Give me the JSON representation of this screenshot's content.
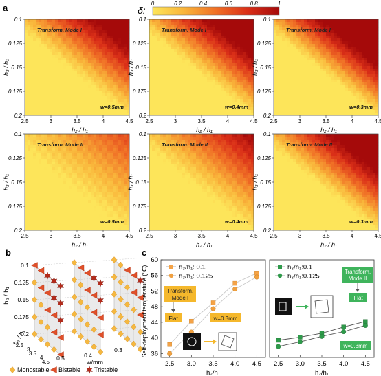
{
  "panel_labels": {
    "a": "a",
    "b": "b",
    "c": "c"
  },
  "colorbar": {
    "symbol": "δ:",
    "ticks": [
      "0",
      "0.2",
      "0.4",
      "0.6",
      "0.8",
      "1"
    ],
    "colors": [
      "#fde55a",
      "#f9b43a",
      "#f07026",
      "#da2f18",
      "#a50a0a"
    ]
  },
  "heatmap_axes": {
    "x_label": "h₂ / h₁",
    "y_label": "h₃ / h₁",
    "x_ticks": [
      "2.5",
      "3",
      "3.5",
      "4",
      "4.5"
    ],
    "y_ticks": [
      "0.1",
      "0.125",
      "0.15",
      "0.175",
      "0.2"
    ]
  },
  "heatmaps": [
    {
      "mode": "Transform. Mode I",
      "width": "w=0.5mm",
      "intensity": 0.78
    },
    {
      "mode": "Transform. Mode I",
      "width": "w=0.4mm",
      "intensity": 0.9
    },
    {
      "mode": "Transform. Mode I",
      "width": "w=0.3mm",
      "intensity": 1.05
    },
    {
      "mode": "Transform. Mode II",
      "width": "w=0.5mm",
      "intensity": 0.35
    },
    {
      "mode": "Transform. Mode II",
      "width": "w=0.4mm",
      "intensity": 0.55
    },
    {
      "mode": "Transform. Mode II",
      "width": "w=0.3mm",
      "intensity": 0.9
    }
  ],
  "panel_b": {
    "y_label": "h₃ / h₁",
    "y_ticks": [
      "0.1",
      "0.125",
      "0.15",
      "0.175",
      "0.2"
    ],
    "x_label": "h₂ / h₁",
    "x_ticks": [
      "2.5",
      "3",
      "3.5",
      "4",
      "4.5"
    ],
    "z_label": "w/mm",
    "z_ticks": [
      "0.3",
      "0.4",
      "0.5"
    ],
    "legend": [
      {
        "label": "Monostable",
        "symbol": "diamond",
        "color": "#f5b840"
      },
      {
        "label": "Bistable",
        "symbol": "triangle",
        "color": "#e0502a"
      },
      {
        "label": "Tristable",
        "symbol": "star",
        "color": "#b52a1a"
      }
    ]
  },
  "chart_data": [
    {
      "type": "line",
      "title": "",
      "xlabel": "h₂/h₁",
      "ylabel": "Self-deployment temperature (℃)",
      "x": [
        2.5,
        3.0,
        3.5,
        4.0,
        4.5
      ],
      "xlim": [
        2.3,
        4.7
      ],
      "ylim": [
        35,
        60
      ],
      "yticks": [
        36,
        40,
        44,
        48,
        52,
        56,
        60
      ],
      "series": [
        {
          "name": "h₃/h₁: 0.1",
          "marker": "square",
          "color": "#f5a347",
          "values": [
            38.3,
            44.3,
            49.0,
            54.0,
            56.6
          ]
        },
        {
          "name": "h₃/h₁: 0.125",
          "marker": "circle",
          "color": "#f0a040",
          "values": [
            36.0,
            41.5,
            47.5,
            52.5,
            55.6
          ]
        }
      ],
      "annotations": {
        "mode": [
          "Transform.",
          "Mode I"
        ],
        "state": "Flat",
        "width": "w=0.3mm"
      }
    },
    {
      "type": "line",
      "title": "",
      "xlabel": "h₂/h₁",
      "ylabel": "",
      "x": [
        2.5,
        3.0,
        3.5,
        4.0,
        4.5
      ],
      "xlim": [
        2.3,
        4.7
      ],
      "ylim": [
        35,
        60
      ],
      "series": [
        {
          "name": "h₃/h₁:0.1",
          "marker": "square",
          "color": "#2e9a4a",
          "values": [
            39.4,
            40.2,
            41.2,
            42.8,
            44.2
          ]
        },
        {
          "name": "h₃/h₁:0.125",
          "marker": "circle",
          "color": "#2e9a4a",
          "values": [
            37.8,
            39.0,
            40.4,
            41.6,
            43.2
          ]
        }
      ],
      "annotations": {
        "mode": [
          "Transform.",
          "Mode II"
        ],
        "state": "Flat",
        "width": "w=0.3mm"
      }
    }
  ]
}
